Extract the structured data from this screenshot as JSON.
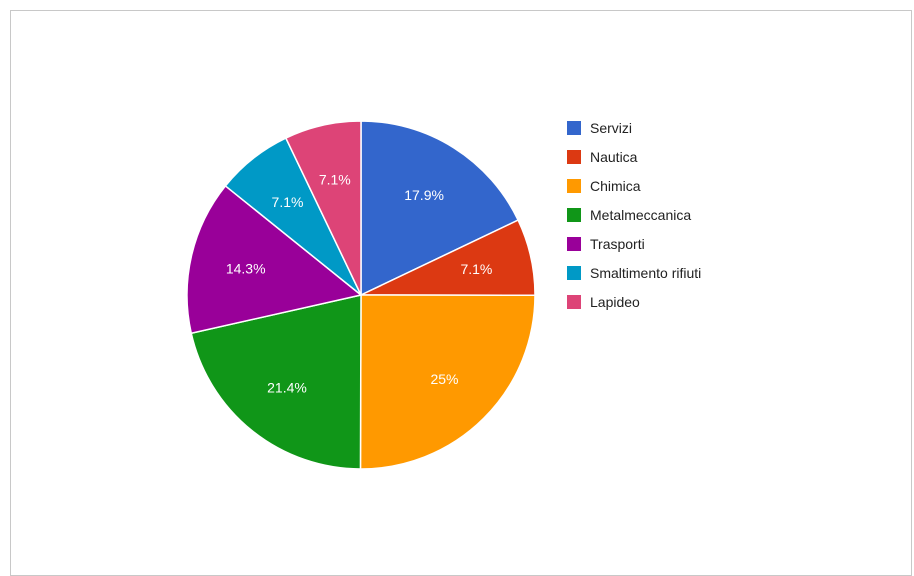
{
  "chart_data": {
    "type": "pie",
    "legend_position": "right",
    "slices": [
      {
        "name": "Servizi",
        "value": 17.9,
        "label": "17.9%",
        "color": "#3366cc"
      },
      {
        "name": "Nautica",
        "value": 7.1,
        "label": "7.1%",
        "color": "#dc3912"
      },
      {
        "name": "Chimica",
        "value": 25,
        "label": "25%",
        "color": "#ff9900"
      },
      {
        "name": "Metalmeccanica",
        "value": 21.4,
        "label": "21.4%",
        "color": "#109618"
      },
      {
        "name": "Trasporti",
        "value": 14.3,
        "label": "14.3%",
        "color": "#990099"
      },
      {
        "name": "Smaltimento rifiuti",
        "value": 7.1,
        "label": "7.1%",
        "color": "#0099c6"
      },
      {
        "name": "Lapideo",
        "value": 7.1,
        "label": "7.1%",
        "color": "#dd4477"
      }
    ]
  }
}
